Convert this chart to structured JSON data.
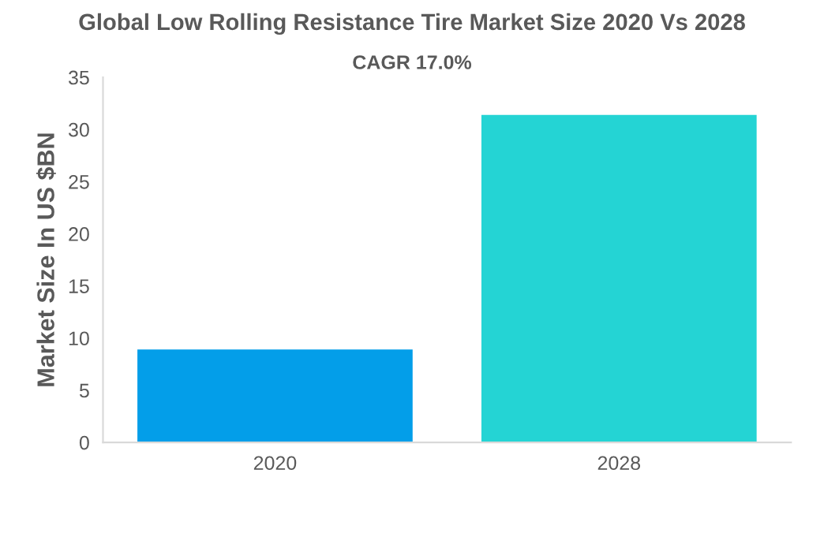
{
  "chart_data": {
    "type": "bar",
    "title": "Global Low Rolling Resistance Tire Market Size 2020 Vs 2028",
    "subtitle": "CAGR 17.0%",
    "ylabel": "Market Size In US $BN",
    "categories": [
      "2020",
      "2028"
    ],
    "values": [
      8.9,
      31.4
    ],
    "colors": [
      "#039ee9",
      "#24d4d4"
    ],
    "ylim": [
      0,
      35
    ],
    "yticks": [
      0,
      5,
      10,
      15,
      20,
      25,
      30,
      35
    ],
    "grid": false
  }
}
